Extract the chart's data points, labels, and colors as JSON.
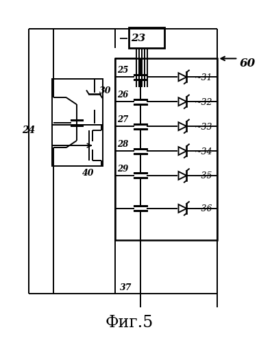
{
  "bg_color": "#ffffff",
  "title": "Фиг.5",
  "figsize": [
    3.78,
    5.0
  ],
  "dpi": 100,
  "sw_labels": [
    "25",
    "26",
    "27",
    "28",
    "29",
    ""
  ],
  "diode_labels": [
    "31",
    "32",
    "33",
    "34",
    "35",
    "36"
  ]
}
